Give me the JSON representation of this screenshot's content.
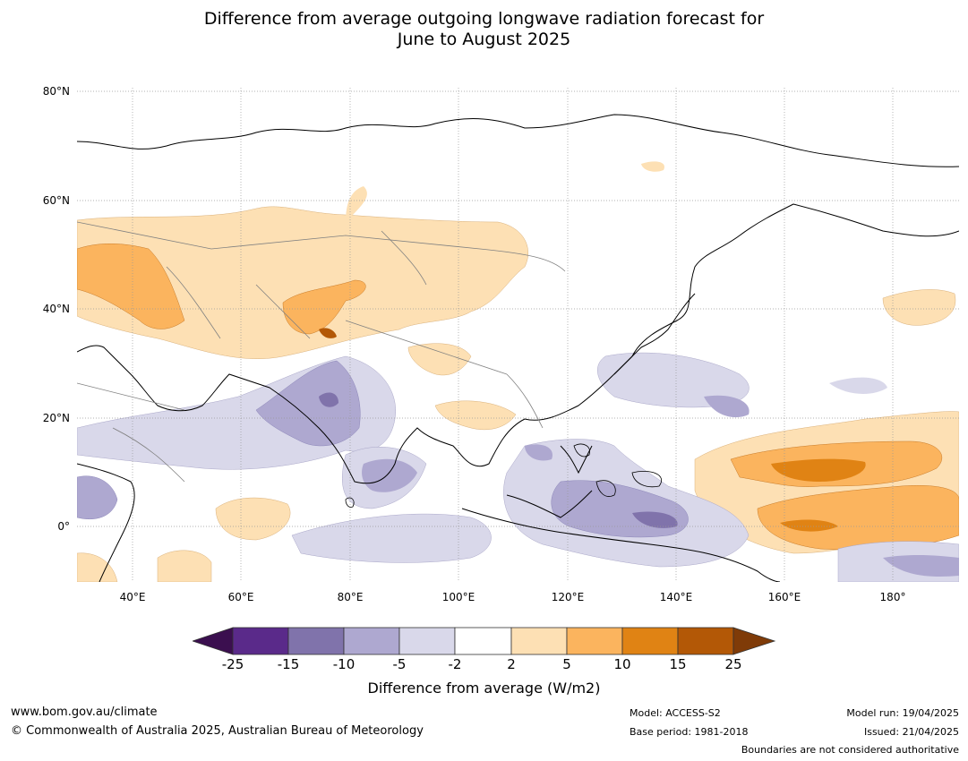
{
  "title_line1": "Difference from average outgoing longwave radiation forecast for",
  "title_line2": "June to August 2025",
  "lat_labels": [
    "80°N",
    "60°N",
    "40°N",
    "20°N",
    "0°"
  ],
  "lon_labels": [
    "40°E",
    "60°E",
    "80°E",
    "100°E",
    "120°E",
    "140°E",
    "160°E",
    "180°"
  ],
  "colorbar": {
    "ticks": [
      "-25",
      "-15",
      "-10",
      "-5",
      "-2",
      "2",
      "5",
      "10",
      "15",
      "25"
    ],
    "colors": [
      "#3b0f4f",
      "#5a2a8a",
      "#8073ab",
      "#aea8d0",
      "#d9d8ea",
      "#ffffff",
      "#fde0b4",
      "#fbb45e",
      "#e08314",
      "#b35806",
      "#7f3b08"
    ],
    "label": "Difference from average (W/m2)"
  },
  "footer": {
    "website": "www.bom.gov.au/climate",
    "copyright": "© Commonwealth of Australia 2025, Australian Bureau of Meteorology",
    "model": "Model: ACCESS-S2",
    "base_period": "Base period: 1981-2018",
    "model_run": "Model run: 19/04/2025",
    "issued": "Issued: 21/04/2025",
    "disclaimer": "Boundaries are not considered authoritative"
  }
}
